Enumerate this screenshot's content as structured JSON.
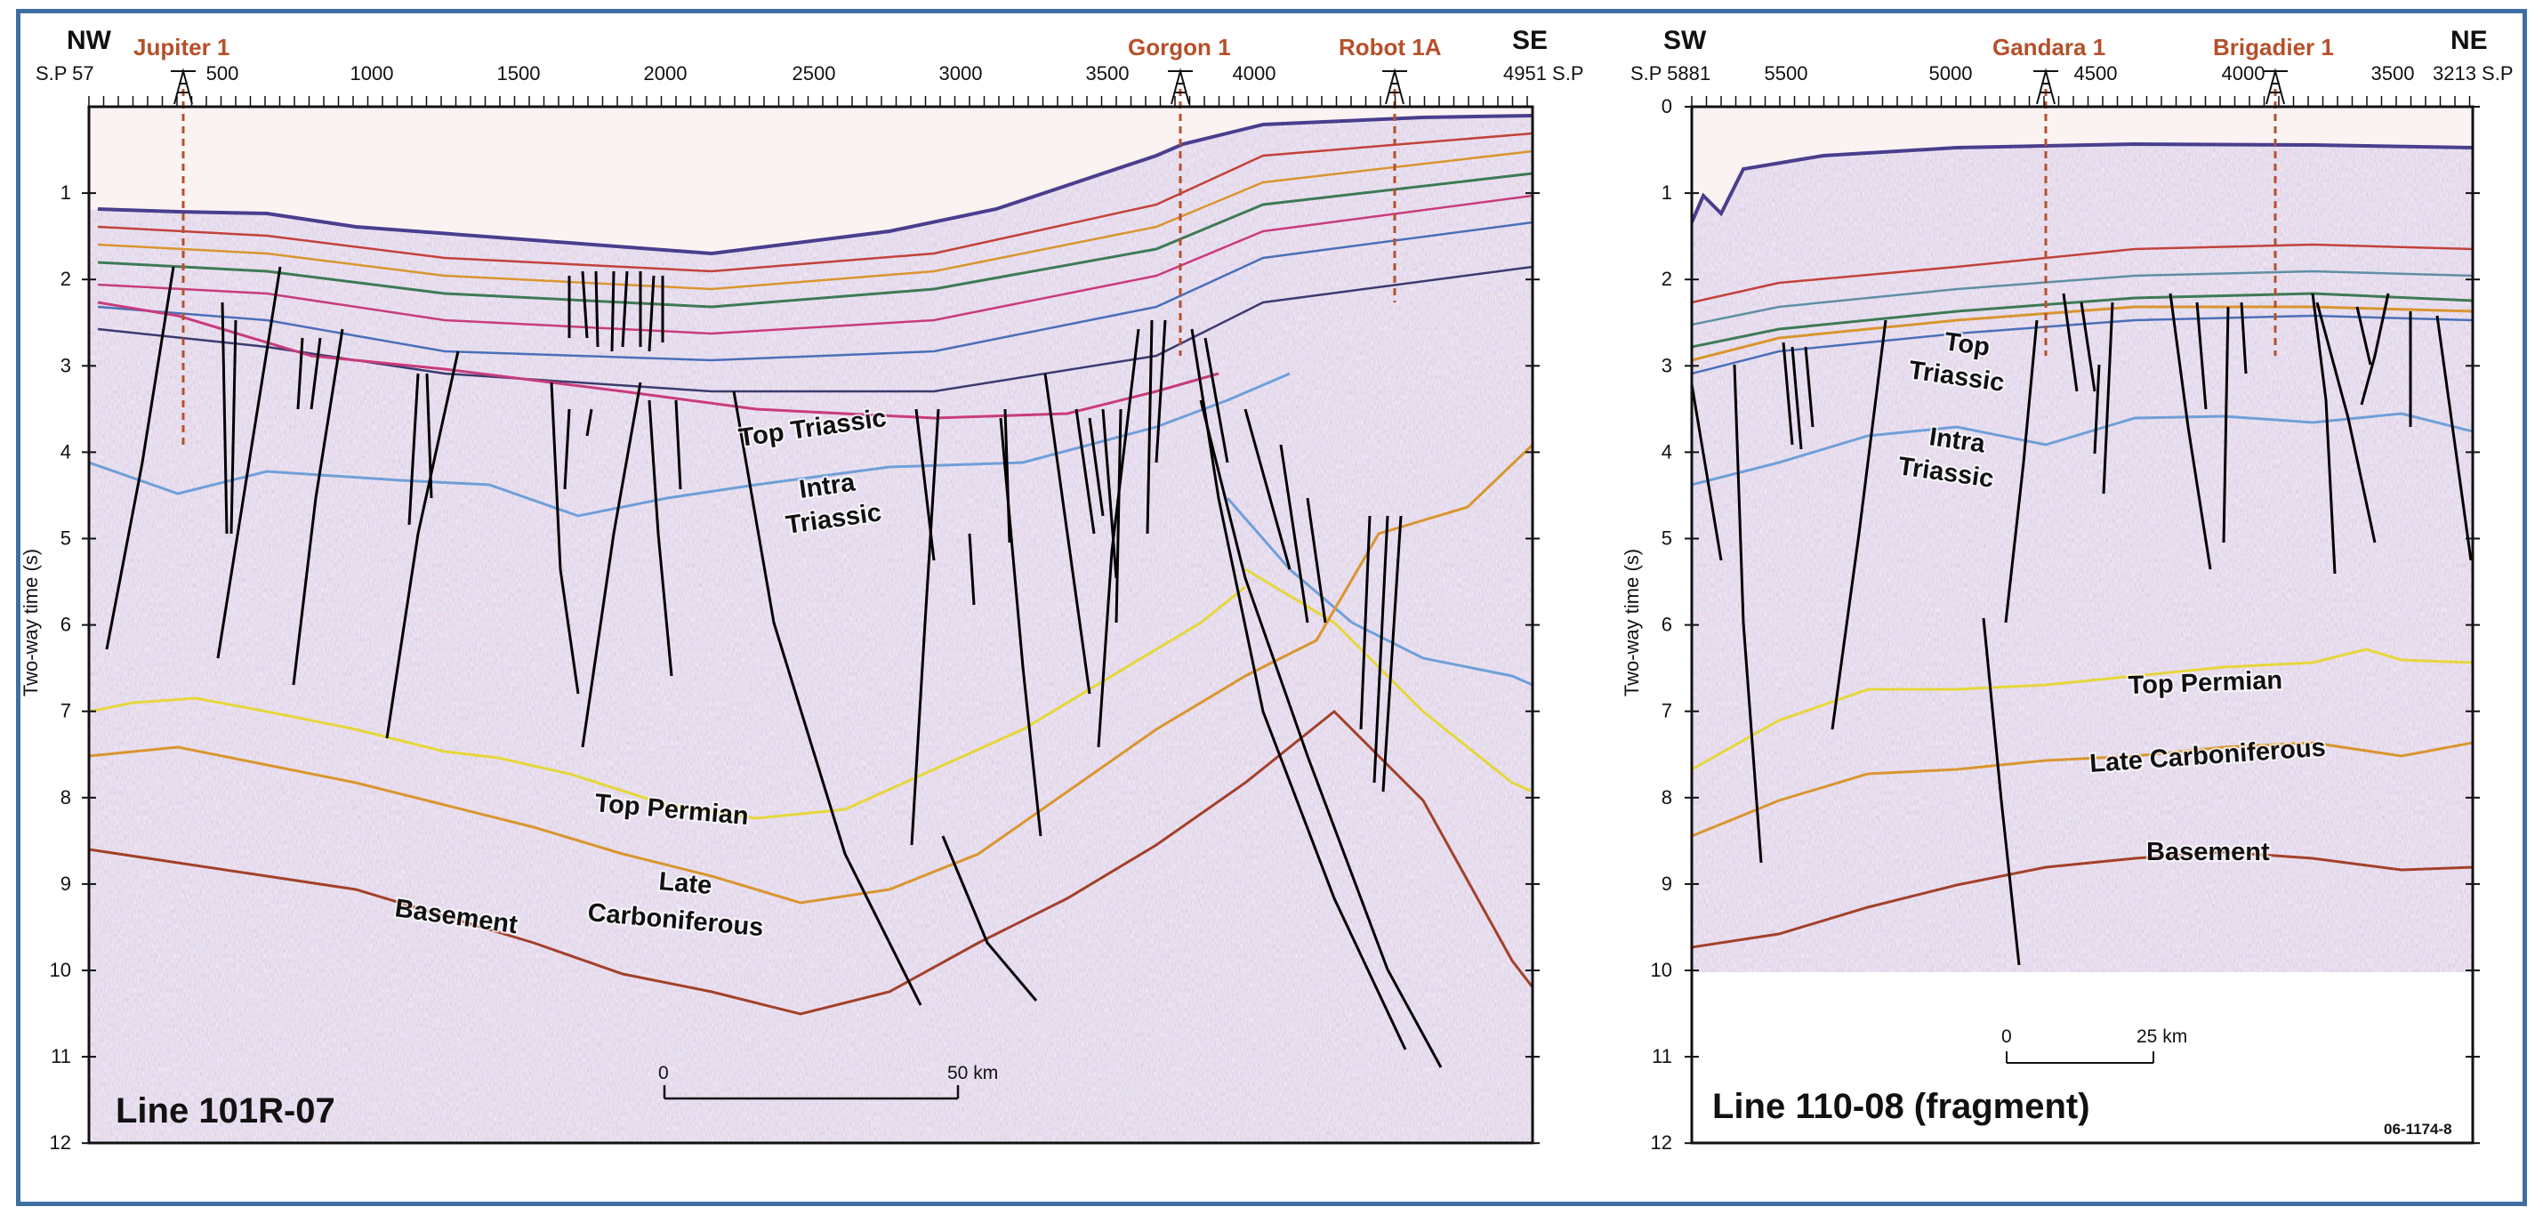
{
  "left_panel": {
    "title": "Line 101R-07",
    "dir_left": "NW",
    "dir_right": "SE",
    "sp_start": "S.P 57",
    "sp_end": "4951 S.P",
    "sp_ticks": [
      "500",
      "1000",
      "1500",
      "2000",
      "2500",
      "3000",
      "3500",
      "4000"
    ],
    "wells": [
      {
        "name": "Jupiter 1"
      },
      {
        "name": "Gorgon 1"
      },
      {
        "name": "Robot 1A"
      }
    ],
    "horizon_labels": {
      "top_triassic": "Top Triassic",
      "intra_1": "Intra",
      "intra_2": "Triassic",
      "top_permian": "Top Permian",
      "late_1": "Late",
      "late_2": "Carboniferous",
      "basement": "Basement"
    },
    "scale": {
      "start": "0",
      "end": "50 km"
    }
  },
  "right_panel": {
    "title": "Line 110-08 (fragment)",
    "dir_left": "SW",
    "dir_right": "NE",
    "sp_start": "S.P 5881",
    "sp_end": "3213 S.P",
    "sp_ticks": [
      "5500",
      "5000",
      "4500",
      "4000",
      "3500"
    ],
    "wells": [
      {
        "name": "Gandara 1"
      },
      {
        "name": "Brigadier 1"
      }
    ],
    "horizon_labels": {
      "top_1": "Top",
      "top_2": "Triassic",
      "intra_1": "Intra",
      "intra_2": "Triassic",
      "top_permian": "Top Permian",
      "late_carb": "Late Carboniferous",
      "basement": "Basement"
    },
    "scale": {
      "start": "0",
      "end": "25 km"
    },
    "figure_id": "06-1174-8"
  },
  "y_axis": {
    "label": "Two-way time (s)",
    "ticks": [
      "1",
      "2",
      "3",
      "4",
      "5",
      "6",
      "7",
      "8",
      "9",
      "10",
      "11",
      "12"
    ],
    "right_ticks": [
      "0",
      "1",
      "2",
      "3",
      "4",
      "5",
      "6",
      "7",
      "8",
      "9",
      "10",
      "11",
      "12"
    ]
  },
  "colors": {
    "frame": "#3f6ea3",
    "well": "#b5502a",
    "fault": "#000000",
    "top_permian": "#e6d63a",
    "late_carb": "#d9952e",
    "basement": "#a3402a",
    "intra_triassic": "#6f9fd8"
  }
}
